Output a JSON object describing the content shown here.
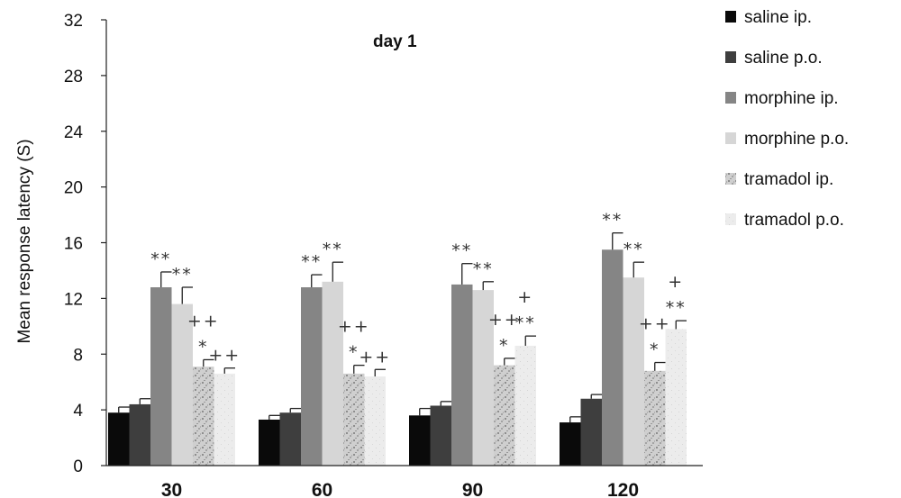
{
  "chart_data": {
    "type": "bar",
    "title": "day 1",
    "xlabel": "",
    "ylabel": "Mean response latency  (S)",
    "ylim": [
      0,
      32
    ],
    "yticks": [
      0,
      4,
      8,
      12,
      16,
      20,
      24,
      28,
      32
    ],
    "categories": [
      "30",
      "60",
      "90",
      "120"
    ],
    "grid": false,
    "legend_position": "right",
    "series": [
      {
        "name": "saline ip.",
        "color": "#0a0a0a",
        "pattern": "solid",
        "values": [
          3.8,
          3.3,
          3.6,
          3.1
        ],
        "errors": [
          0.4,
          0.3,
          0.5,
          0.4
        ],
        "annotations": [
          [],
          [],
          [],
          []
        ]
      },
      {
        "name": "saline p.o.",
        "color": "#3e3e3e",
        "pattern": "solid",
        "values": [
          4.4,
          3.8,
          4.3,
          4.8
        ],
        "errors": [
          0.4,
          0.3,
          0.3,
          0.3
        ],
        "annotations": [
          [],
          [],
          [],
          []
        ]
      },
      {
        "name": "morphine ip.",
        "color": "#858585",
        "pattern": "solid",
        "values": [
          12.8,
          12.8,
          13.0,
          15.5
        ],
        "errors": [
          1.1,
          0.9,
          1.5,
          1.2
        ],
        "annotations": [
          [
            "**"
          ],
          [
            "**"
          ],
          [
            "**"
          ],
          [
            "**"
          ]
        ]
      },
      {
        "name": "morphine p.o.",
        "color": "#d6d6d6",
        "pattern": "solid",
        "values": [
          11.6,
          13.2,
          12.6,
          13.5
        ],
        "errors": [
          1.2,
          1.4,
          0.6,
          1.1
        ],
        "annotations": [
          [
            "**"
          ],
          [
            "**"
          ],
          [
            "**"
          ],
          [
            "**"
          ]
        ]
      },
      {
        "name": "tramadol ip.",
        "color": "#c4c4c4",
        "pattern": "texture",
        "values": [
          7.1,
          6.6,
          7.2,
          6.8
        ],
        "errors": [
          0.5,
          0.6,
          0.5,
          0.6
        ],
        "annotations": [
          [
            "++",
            "*"
          ],
          [
            "++",
            "*"
          ],
          [
            "++",
            "*"
          ],
          [
            "++",
            "*"
          ]
        ]
      },
      {
        "name": "tramadol p.o.",
        "color": "#e9e9e9",
        "pattern": "light",
        "values": [
          6.6,
          6.4,
          8.6,
          9.8
        ],
        "errors": [
          0.4,
          0.5,
          0.7,
          0.6
        ],
        "annotations": [
          [
            "++"
          ],
          [
            "++"
          ],
          [
            "+",
            "**"
          ],
          [
            "+",
            "**"
          ]
        ]
      }
    ]
  }
}
